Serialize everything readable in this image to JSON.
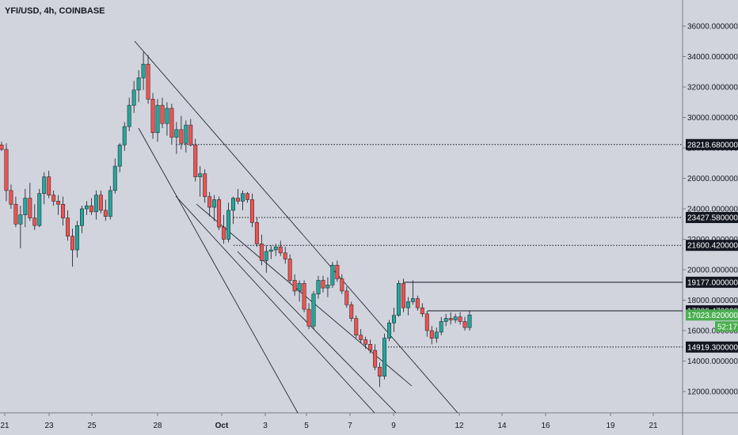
{
  "title": "YFI/USD, 4h, COINBASE",
  "chart_data": {
    "type": "candlestick",
    "title": "YFI/USD, 4h, COINBASE",
    "ylim": [
      10500,
      37000
    ],
    "x_ticks": [
      "21",
      "23",
      "25",
      "28",
      "Oct",
      "3",
      "5",
      "7",
      "9",
      "12",
      "14",
      "16",
      "19",
      "21"
    ],
    "y_ticks": [
      {
        "value": 12000,
        "label": "12000.00000000"
      },
      {
        "value": 14000,
        "label": "14000.00000000"
      },
      {
        "value": 16000,
        "label": "16000.00000000"
      },
      {
        "value": 18000,
        "label": "18000.00000000"
      },
      {
        "value": 20000,
        "label": "20000.00000000"
      },
      {
        "value": 22000,
        "label": "22000.00000000"
      },
      {
        "value": 24000,
        "label": "24000.00000000"
      },
      {
        "value": 26000,
        "label": "26000.00000000"
      },
      {
        "value": 28000,
        "label": "28000.00000000"
      },
      {
        "value": 30000,
        "label": "30000.00000000"
      },
      {
        "value": 32000,
        "label": "32000.00000000"
      },
      {
        "value": 34000,
        "label": "34000.00000000"
      },
      {
        "value": 36000,
        "label": "36000.00000000"
      }
    ],
    "price_levels": [
      {
        "value": 28218.68,
        "label": "28218.68000000",
        "style": "dotted"
      },
      {
        "value": 23427.58,
        "label": "23427.58000000",
        "style": "dotted"
      },
      {
        "value": 21600.42,
        "label": "21600.42000000",
        "style": "dotted"
      },
      {
        "value": 19177.0,
        "label": "19177.00000000",
        "style": "solid"
      },
      {
        "value": 17300.47,
        "label": "17300.47000000",
        "style": "solid"
      },
      {
        "value": 14919.3,
        "label": "14919.30000000",
        "style": "dotted"
      }
    ],
    "current_price": {
      "value": 17023.82,
      "label": "17023.82000000",
      "countdown": "52:17",
      "color": "#4caf50"
    },
    "candles": [
      [
        28200,
        28400,
        27800,
        27900
      ],
      [
        27900,
        28300,
        24500,
        25200
      ],
      [
        25200,
        25600,
        24000,
        24300
      ],
      [
        24300,
        24800,
        22800,
        23000
      ],
      [
        23000,
        24200,
        21400,
        23600
      ],
      [
        23600,
        25300,
        22800,
        24700
      ],
      [
        24700,
        25700,
        23200,
        23400
      ],
      [
        23400,
        24300,
        22600,
        22900
      ],
      [
        22900,
        25300,
        22800,
        25000
      ],
      [
        25000,
        26400,
        24300,
        26100
      ],
      [
        26100,
        26500,
        24700,
        24900
      ],
      [
        24900,
        25200,
        24200,
        24500
      ],
      [
        24500,
        24900,
        23600,
        24300
      ],
      [
        24300,
        24800,
        22900,
        23400
      ],
      [
        23400,
        23900,
        21900,
        22200
      ],
      [
        22200,
        22700,
        20200,
        21300
      ],
      [
        21300,
        23200,
        20800,
        22900
      ],
      [
        22900,
        24200,
        22400,
        24000
      ],
      [
        24000,
        24500,
        23600,
        24200
      ],
      [
        24200,
        24700,
        23600,
        23800
      ],
      [
        23800,
        25200,
        23300,
        24900
      ],
      [
        24900,
        25200,
        23700,
        23900
      ],
      [
        23900,
        24600,
        23200,
        23500
      ],
      [
        23500,
        25500,
        23300,
        25200
      ],
      [
        25200,
        27300,
        25000,
        26800
      ],
      [
        26800,
        28300,
        26400,
        28200
      ],
      [
        28200,
        29700,
        27800,
        29400
      ],
      [
        29400,
        31300,
        29100,
        30800
      ],
      [
        30800,
        32400,
        30300,
        31800
      ],
      [
        31800,
        33100,
        31000,
        32600
      ],
      [
        32600,
        34300,
        31800,
        33500
      ],
      [
        33500,
        34100,
        30900,
        31200
      ],
      [
        31200,
        31600,
        28600,
        29000
      ],
      [
        29000,
        31200,
        28400,
        30800
      ],
      [
        30800,
        31300,
        29300,
        29600
      ],
      [
        29600,
        31000,
        28800,
        30600
      ],
      [
        30600,
        30900,
        28200,
        28700
      ],
      [
        28700,
        29700,
        27600,
        29200
      ],
      [
        29200,
        30100,
        27900,
        28300
      ],
      [
        28300,
        29800,
        27700,
        29500
      ],
      [
        29500,
        29900,
        28100,
        28200
      ],
      [
        28200,
        28600,
        25800,
        26100
      ],
      [
        26100,
        26800,
        24800,
        26300
      ],
      [
        26300,
        26600,
        24400,
        24800
      ],
      [
        24800,
        25100,
        23500,
        24100
      ],
      [
        24100,
        24900,
        23200,
        24600
      ],
      [
        24600,
        24800,
        22600,
        22800
      ],
      [
        22800,
        23600,
        21700,
        22000
      ],
      [
        22000,
        24400,
        21800,
        23900
      ],
      [
        23900,
        24800,
        23000,
        24700
      ],
      [
        24700,
        25300,
        24300,
        24500
      ],
      [
        24500,
        25200,
        23900,
        25000
      ],
      [
        25000,
        25100,
        24400,
        24600
      ],
      [
        24600,
        25000,
        22800,
        23100
      ],
      [
        23100,
        23400,
        21500,
        21700
      ],
      [
        21700,
        22300,
        20300,
        20600
      ],
      [
        20600,
        21600,
        19800,
        21200
      ],
      [
        21200,
        21600,
        20700,
        21300
      ],
      [
        21300,
        21700,
        20900,
        21500
      ],
      [
        21500,
        21900,
        20900,
        21100
      ],
      [
        21100,
        21500,
        20400,
        20700
      ],
      [
        20700,
        21000,
        19100,
        19300
      ],
      [
        19300,
        19700,
        18300,
        18600
      ],
      [
        18600,
        19300,
        17900,
        19100
      ],
      [
        19100,
        19300,
        17200,
        17400
      ],
      [
        17400,
        17800,
        16100,
        16300
      ],
      [
        16300,
        18600,
        16100,
        18400
      ],
      [
        18400,
        19600,
        18100,
        19300
      ],
      [
        19300,
        19600,
        18500,
        18800
      ],
      [
        18800,
        19500,
        18200,
        19000
      ],
      [
        19000,
        20500,
        18800,
        20300
      ],
      [
        20300,
        20600,
        19200,
        19400
      ],
      [
        19400,
        19700,
        18400,
        18600
      ],
      [
        18600,
        18900,
        17500,
        17700
      ],
      [
        17700,
        17900,
        16600,
        16800
      ],
      [
        16800,
        17000,
        15500,
        15700
      ],
      [
        15700,
        16100,
        15200,
        15400
      ],
      [
        15400,
        15600,
        14800,
        15100
      ],
      [
        15100,
        15400,
        14500,
        14700
      ],
      [
        14700,
        15100,
        13400,
        13600
      ],
      [
        13600,
        13900,
        12300,
        13000
      ],
      [
        13000,
        15800,
        12800,
        15500
      ],
      [
        15500,
        16700,
        15300,
        16500
      ],
      [
        16500,
        17500,
        15900,
        17000
      ],
      [
        17000,
        19300,
        16900,
        19100
      ],
      [
        19100,
        19400,
        17200,
        17500
      ],
      [
        17500,
        18200,
        17000,
        17900
      ],
      [
        17900,
        19300,
        17700,
        18100
      ],
      [
        18100,
        18300,
        17300,
        17500
      ],
      [
        17500,
        17800,
        16900,
        17100
      ],
      [
        17100,
        17300,
        15600,
        16000
      ],
      [
        16000,
        16300,
        15100,
        15500
      ],
      [
        15500,
        16200,
        15200,
        15900
      ],
      [
        15900,
        16900,
        15700,
        16600
      ],
      [
        16600,
        17100,
        16300,
        16800
      ],
      [
        16800,
        17200,
        16400,
        16700
      ],
      [
        16700,
        17100,
        16500,
        16900
      ],
      [
        16900,
        17200,
        16400,
        16600
      ],
      [
        16600,
        16900,
        16000,
        16200
      ],
      [
        16200,
        17300,
        16000,
        17024
      ]
    ]
  },
  "colors": {
    "background": "#d1d4dc",
    "up": "#26a69a",
    "down": "#ef5350",
    "line": "#131722"
  }
}
